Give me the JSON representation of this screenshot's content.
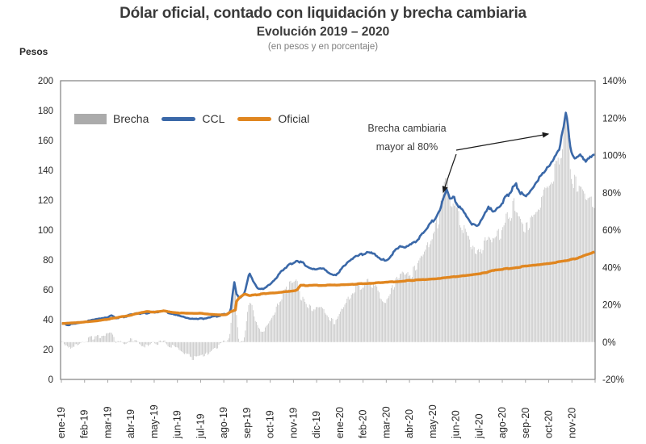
{
  "chart_data": {
    "type": "combo-bar-line",
    "title": "Dólar oficial, contado con liquidación y brecha cambiaria",
    "subtitle": "Evolución 2019 – 2020",
    "note": "(en pesos y en porcentaje)",
    "ylabel_left": "Pesos",
    "axes": {
      "left": {
        "label": "Pesos",
        "min": 0,
        "max": 200,
        "ticks": [
          0,
          20,
          40,
          60,
          80,
          100,
          120,
          140,
          160,
          180,
          200
        ]
      },
      "right": {
        "min_pct": -20,
        "max_pct": 140,
        "tick_labels": [
          "-20%",
          "0%",
          "20%",
          "40%",
          "60%",
          "80%",
          "100%",
          "120%",
          "140%"
        ]
      },
      "x": {
        "tick_labels": [
          "ene-19",
          "feb-19",
          "mar-19",
          "abr-19",
          "may-19",
          "jun-19",
          "jul-19",
          "ago-19",
          "sep-19",
          "oct-19",
          "nov-19",
          "dic-19",
          "ene-20",
          "feb-20",
          "mar-20",
          "abr-20",
          "may-20",
          "jun-20",
          "jul-20",
          "ago-20",
          "sep-20",
          "oct-20",
          "nov-20"
        ]
      }
    },
    "legend": [
      {
        "name": "Brecha",
        "type": "bar",
        "color": "#C4C4C4",
        "swatch_color": "#ABABAB",
        "axis": "right"
      },
      {
        "name": "CCL",
        "type": "line",
        "color": "#3A68A8",
        "axis": "left"
      },
      {
        "name": "Oficial",
        "type": "line",
        "color": "#E08620",
        "axis": "left"
      }
    ],
    "annotation": {
      "text_line1": "Brecha  cambiaria",
      "text_line2": "mayor al 80%",
      "targets": [
        "may-20 peak ~126",
        "oct-20 peak ~181"
      ]
    },
    "series": {
      "ccl": {
        "name": "CCL",
        "axis": "left",
        "units": "pesos",
        "points_month_value": [
          [
            0,
            37.4
          ],
          [
            0.3,
            36.7
          ],
          [
            0.7,
            37.5
          ],
          [
            1,
            38.4
          ],
          [
            1.3,
            39.4
          ],
          [
            1.7,
            40.6
          ],
          [
            2,
            41.2
          ],
          [
            2.15,
            42.8
          ],
          [
            2.35,
            41
          ],
          [
            2.7,
            42
          ],
          [
            3,
            43.2
          ],
          [
            3.25,
            44.8
          ],
          [
            3.5,
            43.9
          ],
          [
            3.8,
            44.8
          ],
          [
            4.1,
            45.3
          ],
          [
            4.4,
            45.9
          ],
          [
            4.7,
            44.2
          ],
          [
            5,
            43
          ],
          [
            5.3,
            41.8
          ],
          [
            5.6,
            41
          ],
          [
            5.9,
            40.6
          ],
          [
            6.2,
            41.1
          ],
          [
            6.6,
            42.1
          ],
          [
            7,
            43.3
          ],
          [
            7.2,
            44.6
          ],
          [
            7.3,
            46.5
          ],
          [
            7.38,
            57.5
          ],
          [
            7.45,
            64.8
          ],
          [
            7.55,
            56.5
          ],
          [
            7.7,
            54.8
          ],
          [
            7.9,
            58
          ],
          [
            8.1,
            71.8
          ],
          [
            8.25,
            66
          ],
          [
            8.45,
            61
          ],
          [
            8.7,
            60.2
          ],
          [
            9,
            63.8
          ],
          [
            9.3,
            68.8
          ],
          [
            9.6,
            74.8
          ],
          [
            9.9,
            77.8
          ],
          [
            10.15,
            79.6
          ],
          [
            10.4,
            77.6
          ],
          [
            10.7,
            75.2
          ],
          [
            11,
            73.6
          ],
          [
            11.2,
            74.6
          ],
          [
            11.5,
            71.6
          ],
          [
            11.75,
            69.2
          ],
          [
            12,
            72.6
          ],
          [
            12.3,
            77.6
          ],
          [
            12.6,
            81.2
          ],
          [
            12.9,
            83.6
          ],
          [
            13.2,
            85.2
          ],
          [
            13.5,
            83.2
          ],
          [
            13.8,
            79.6
          ],
          [
            14.1,
            81.2
          ],
          [
            14.4,
            86.6
          ],
          [
            14.6,
            89.6
          ],
          [
            14.8,
            87.6
          ],
          [
            15.1,
            90.2
          ],
          [
            15.4,
            94.2
          ],
          [
            15.7,
            99.2
          ],
          [
            15.9,
            103.6
          ],
          [
            16.1,
            108.2
          ],
          [
            16.3,
            114.2
          ],
          [
            16.5,
            122.2
          ],
          [
            16.6,
            126.2
          ],
          [
            16.75,
            119.6
          ],
          [
            16.9,
            122.6
          ],
          [
            17.1,
            116.6
          ],
          [
            17.4,
            110.6
          ],
          [
            17.7,
            104.2
          ],
          [
            17.95,
            101.6
          ],
          [
            18.2,
            109.6
          ],
          [
            18.4,
            116.6
          ],
          [
            18.6,
            111.2
          ],
          [
            18.85,
            115.6
          ],
          [
            19.1,
            120.6
          ],
          [
            19.4,
            127.2
          ],
          [
            19.6,
            130.6
          ],
          [
            19.8,
            125.2
          ],
          [
            20,
            122.6
          ],
          [
            20.2,
            126.2
          ],
          [
            20.5,
            133.2
          ],
          [
            20.8,
            138.2
          ],
          [
            21,
            143.2
          ],
          [
            21.2,
            148.6
          ],
          [
            21.45,
            155.2
          ],
          [
            21.65,
            168.2
          ],
          [
            21.75,
            181
          ],
          [
            21.85,
            168
          ],
          [
            21.95,
            153.2
          ],
          [
            22.1,
            147.6
          ],
          [
            22.35,
            150.6
          ],
          [
            22.6,
            146.6
          ],
          [
            22.8,
            149.6
          ],
          [
            23,
            149
          ]
        ]
      },
      "oficial": {
        "name": "Oficial",
        "axis": "left",
        "units": "pesos",
        "points_month_value": [
          [
            0,
            37.5
          ],
          [
            0.5,
            37.8
          ],
          [
            1,
            38.4
          ],
          [
            1.5,
            39.1
          ],
          [
            2,
            40.3
          ],
          [
            2.5,
            41.7
          ],
          [
            3,
            43.1
          ],
          [
            3.4,
            44.7
          ],
          [
            3.7,
            45.4
          ],
          [
            4,
            45
          ],
          [
            4.4,
            45.9
          ],
          [
            4.8,
            44.9
          ],
          [
            5.2,
            44.4
          ],
          [
            5.6,
            44.3
          ],
          [
            6,
            44.2
          ],
          [
            6.4,
            43.6
          ],
          [
            6.8,
            43.2
          ],
          [
            7.1,
            43.4
          ],
          [
            7.3,
            45.4
          ],
          [
            7.5,
            46.5
          ],
          [
            7.55,
            52.5
          ],
          [
            7.7,
            55.2
          ],
          [
            7.9,
            57.2
          ],
          [
            8.1,
            56.1
          ],
          [
            8.5,
            56.9
          ],
          [
            9,
            57.9
          ],
          [
            9.5,
            58.4
          ],
          [
            10,
            59.4
          ],
          [
            10.15,
            59.7
          ],
          [
            10.3,
            62.9
          ],
          [
            10.8,
            63
          ],
          [
            11.3,
            63
          ],
          [
            11.8,
            63.2
          ],
          [
            12.3,
            63.5
          ],
          [
            12.8,
            64
          ],
          [
            13.3,
            64.4
          ],
          [
            13.8,
            64.9
          ],
          [
            14.3,
            65.4
          ],
          [
            14.8,
            66
          ],
          [
            15.3,
            66.5
          ],
          [
            15.8,
            67.1
          ],
          [
            16.3,
            67.7
          ],
          [
            16.8,
            68.4
          ],
          [
            17.3,
            69.4
          ],
          [
            17.8,
            70.4
          ],
          [
            18.3,
            71.5
          ],
          [
            18.55,
            73.1
          ],
          [
            18.8,
            73.4
          ],
          [
            19.3,
            74.3
          ],
          [
            19.8,
            75.4
          ],
          [
            20.3,
            76.3
          ],
          [
            20.8,
            77.4
          ],
          [
            21.3,
            78.4
          ],
          [
            21.8,
            79.6
          ],
          [
            22.1,
            80.7
          ],
          [
            22.4,
            82.1
          ],
          [
            22.7,
            83.9
          ],
          [
            23,
            85.4
          ]
        ]
      },
      "brecha": {
        "name": "Brecha",
        "axis": "right",
        "units": "percent",
        "derived": "(CCL - Oficial) / Oficial * 100, daily bars",
        "monthly_approx_pct": [
          -3,
          3,
          4,
          1,
          -2,
          -8,
          -5,
          15,
          13,
          28,
          31,
          16,
          22,
          30,
          32,
          58,
          82,
          50,
          62,
          66,
          85,
          110,
          72
        ]
      }
    },
    "colors": {
      "ccl": "#3A68A8",
      "oficial": "#E08620",
      "brecha_bars": "#C4C4C4",
      "legend_swatch": "#ABABAB",
      "frame": "#808080",
      "axis_text": "#262626",
      "arrow": "#1a1a1a"
    },
    "layout_hints": {
      "grid": false,
      "legend_position": "top-left-inside",
      "x_labels_rotated": -90
    }
  }
}
